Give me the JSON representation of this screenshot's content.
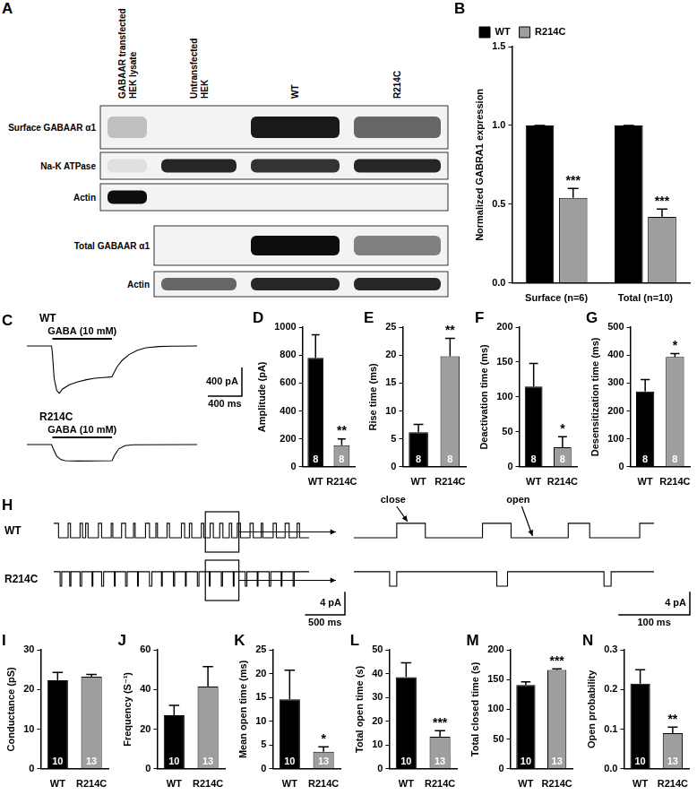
{
  "blot": {
    "panel": "A",
    "lanes": [
      [
        "GABAAR transfected",
        "HEK lysate"
      ],
      [
        "Untransfected",
        "HEK"
      ],
      [
        "WT"
      ],
      [
        "R214C"
      ]
    ],
    "rows": [
      {
        "label": "Surface GABAAR α1",
        "band_intensity": [
          0.25,
          0,
          0.9,
          0.6
        ]
      },
      {
        "label": "Na-K ATPase",
        "band_intensity": [
          0.12,
          0.85,
          0.8,
          0.85
        ]
      },
      {
        "label": "Actin",
        "band_intensity": [
          0.95,
          0,
          0,
          0
        ]
      },
      {
        "label": "Total GABAAR α1",
        "band_intensity": [
          null,
          0,
          0.95,
          0.5
        ]
      },
      {
        "label": "Actin",
        "band_intensity": [
          null,
          0.6,
          0.85,
          0.85
        ]
      }
    ]
  },
  "chart_data": [
    {
      "panel": "B",
      "type": "bar",
      "categories": [
        "Surface (n=6)",
        "Total (n=10)"
      ],
      "series": [
        {
          "name": "WT",
          "color": "#000000",
          "values": [
            1,
            1
          ],
          "errors": [
            0,
            0
          ]
        },
        {
          "name": "R214C",
          "color": "#9e9e9e",
          "values": [
            0.54,
            0.42
          ],
          "errors": [
            0.06,
            0.05
          ],
          "significance": [
            "***",
            "***"
          ]
        }
      ],
      "y_label": "Normalized GABRA1 expression",
      "ylim": [
        0,
        1.5
      ],
      "yticks": [
        {
          "value": 0,
          "label": "0.0"
        },
        0.5,
        {
          "value": 1,
          "label": "1.0"
        },
        1.5
      ],
      "legend": "top-left",
      "grid": false
    },
    {
      "panel": "C",
      "type": "line",
      "line_style": "solid",
      "color": "#000000",
      "series": [
        {
          "name": "WT",
          "x": [
            0,
            290,
            300,
            320,
            350,
            380,
            420,
            500,
            600,
            700,
            800,
            900,
            1000,
            1020,
            1060,
            1120,
            1200,
            1300,
            1400,
            1550,
            1700,
            2000
          ],
          "values": [
            0,
            0,
            -100,
            -450,
            -620,
            -660,
            -600,
            -540,
            -500,
            -470,
            -450,
            -440,
            -430,
            -380,
            -290,
            -200,
            -120,
            -60,
            -25,
            -8,
            -3,
            0
          ]
        },
        {
          "name": "R214C",
          "x": [
            0,
            290,
            310,
            350,
            400,
            450,
            600,
            800,
            1000,
            1030,
            1080,
            1150,
            1250,
            2000
          ],
          "values": [
            0,
            0,
            -60,
            -160,
            -210,
            -225,
            -230,
            -228,
            -225,
            -150,
            -60,
            -15,
            -3,
            0
          ]
        }
      ],
      "stimulus": {
        "label": "GABA (10 mM)",
        "start": 300,
        "end": 1000
      },
      "xlim": [
        0,
        2000
      ],
      "ylim": [
        -700,
        50
      ],
      "scale_bar": {
        "x": 400,
        "x_label": "400 ms",
        "y": 400,
        "y_label": "400 pA"
      },
      "tick_labels": false
    },
    {
      "panel": "D",
      "type": "bar",
      "categories": [
        "WT",
        "R214C"
      ],
      "values": [
        780,
        155
      ],
      "errors": [
        165,
        45
      ],
      "colors": [
        "#000000",
        "#9e9e9e"
      ],
      "n": [
        8,
        8
      ],
      "significance": [
        null,
        "**"
      ],
      "y_label": "Amplitude (pA)",
      "ylim": [
        0,
        1000
      ],
      "yticks": [
        0,
        200,
        400,
        600,
        800,
        1000
      ],
      "grid": false
    },
    {
      "panel": "E",
      "type": "bar",
      "categories": [
        "WT",
        "R214C"
      ],
      "values": [
        6.2,
        19.8
      ],
      "errors": [
        1.4,
        3.2
      ],
      "colors": [
        "#000000",
        "#9e9e9e"
      ],
      "n": [
        8,
        8
      ],
      "significance": [
        null,
        "**"
      ],
      "y_label": "Rise time (ms)",
      "ylim": [
        0,
        25
      ],
      "yticks": [
        0,
        5,
        10,
        15,
        20,
        25
      ],
      "grid": false
    },
    {
      "panel": "F",
      "type": "bar",
      "categories": [
        "WT",
        "R214C"
      ],
      "values": [
        115,
        28
      ],
      "errors": [
        33,
        15
      ],
      "colors": [
        "#000000",
        "#9e9e9e"
      ],
      "n": [
        8,
        8
      ],
      "significance": [
        null,
        "*"
      ],
      "y_label": "Deactivation time (ms)",
      "ylim": [
        0,
        200
      ],
      "yticks": [
        0,
        50,
        100,
        150,
        200
      ],
      "grid": false
    },
    {
      "panel": "G",
      "type": "bar",
      "categories": [
        "WT",
        "R214C"
      ],
      "values": [
        270,
        393
      ],
      "errors": [
        42,
        12
      ],
      "colors": [
        "#000000",
        "#9e9e9e"
      ],
      "n": [
        8,
        8
      ],
      "significance": [
        null,
        "*"
      ],
      "y_label": "Desensitization time (ms)",
      "ylim": [
        0,
        500
      ],
      "yticks": [
        0,
        100,
        200,
        300,
        400,
        500
      ],
      "grid": false
    },
    {
      "panel": "H",
      "type": "line",
      "line_style": "steps",
      "color": "#000000",
      "series": [
        {
          "name": "WT",
          "x": [
            0,
            60,
            180,
            210,
            330,
            360,
            400,
            430,
            560,
            600,
            720,
            740,
            850,
            900,
            1000,
            1020,
            1150,
            1200,
            1280,
            1300,
            1420,
            1450,
            1600,
            1640,
            1700,
            1730,
            1850,
            1880,
            1960,
            2000,
            2080,
            2120,
            2200,
            2230,
            2300,
            2340,
            2460,
            2500,
            2600,
            2620,
            2750,
            2790,
            2900,
            2950,
            3050,
            3080,
            3200
          ],
          "values": [
            0,
            -2.5,
            0,
            -2.5,
            0,
            -2.5,
            0,
            -2.5,
            0,
            -2.5,
            0,
            -2.5,
            0,
            -2.5,
            0,
            -2.5,
            0,
            -2.5,
            0,
            -2.5,
            0,
            -2.5,
            0,
            -2.5,
            0,
            -2.5,
            0,
            -2.5,
            0,
            -2.5,
            0,
            -2.5,
            0,
            -2.5,
            0,
            -2.5,
            0,
            -2.5,
            0,
            -2.5,
            0,
            -2.5,
            0,
            -2.5,
            0,
            -2.5,
            -2.5
          ],
          "annotations": [
            {
              "text": "close",
              "x": 1975,
              "y": 0
            },
            {
              "text": "open",
              "x": 2150,
              "y": -2.5
            }
          ]
        },
        {
          "name": "R214C",
          "x": [
            0,
            80,
            100,
            200,
            215,
            330,
            350,
            480,
            490,
            600,
            625,
            760,
            770,
            900,
            920,
            1050,
            1060,
            1200,
            1230,
            1350,
            1360,
            1500,
            1515,
            1650,
            1660,
            1800,
            1820,
            1950,
            1960,
            2100,
            2115,
            2250,
            2260,
            2400,
            2420,
            2550,
            2560,
            2700,
            2720,
            2850,
            2860,
            3000,
            3015,
            3200
          ],
          "values": [
            0,
            -2.5,
            0,
            -2.5,
            0,
            -2.5,
            0,
            -2.5,
            0,
            -2.5,
            0,
            -2.5,
            0,
            -2.5,
            0,
            -2.5,
            0,
            -2.5,
            0,
            -2.5,
            0,
            -2.5,
            0,
            -2.5,
            0,
            -2.5,
            0,
            -2.5,
            0,
            -2.5,
            0,
            -2.5,
            0,
            -2.5,
            0,
            -2.5,
            0,
            -2.5,
            0,
            -2.5,
            0,
            -2.5,
            0,
            0
          ]
        }
      ],
      "xlim": [
        0,
        3200
      ],
      "ylim": [
        -5,
        2
      ],
      "zoom_xlim": [
        1900,
        2320
      ],
      "scale_bar": {
        "x": 500,
        "x_label": "500 ms",
        "y": 4,
        "y_label": "4 pA"
      },
      "zoom_scale_bar": {
        "x": 100,
        "x_label": "100 ms",
        "y": 4,
        "y_label": "4 pA"
      },
      "tick_labels": false
    },
    {
      "panel": "I",
      "type": "bar",
      "categories": [
        "WT",
        "R214C"
      ],
      "values": [
        22.3,
        23.2
      ],
      "errors": [
        2,
        0.6
      ],
      "colors": [
        "#000000",
        "#9e9e9e"
      ],
      "n": [
        10,
        13
      ],
      "significance": [
        null,
        null
      ],
      "y_label": "Conductance (pS)",
      "ylim": [
        0,
        30
      ],
      "yticks": [
        0,
        10,
        20,
        30
      ],
      "grid": false
    },
    {
      "panel": "J",
      "type": "bar",
      "categories": [
        "WT",
        "R214C"
      ],
      "values": [
        27,
        41.5
      ],
      "errors": [
        5,
        10
      ],
      "colors": [
        "#000000",
        "#9e9e9e"
      ],
      "n": [
        10,
        13
      ],
      "significance": [
        null,
        null
      ],
      "y_label": "Frequency (S⁻¹)",
      "ylim": [
        0,
        60
      ],
      "yticks": [
        0,
        20,
        40,
        60
      ],
      "grid": false
    },
    {
      "panel": "K",
      "type": "bar",
      "categories": [
        "WT",
        "R214C"
      ],
      "values": [
        14.6,
        3.6
      ],
      "errors": [
        6.1,
        1
      ],
      "colors": [
        "#000000",
        "#9e9e9e"
      ],
      "n": [
        10,
        13
      ],
      "significance": [
        null,
        "*"
      ],
      "y_label": "Mean open time (ms)",
      "ylim": [
        0,
        25
      ],
      "yticks": [
        0,
        5,
        10,
        15,
        20,
        25
      ],
      "grid": false
    },
    {
      "panel": "L",
      "type": "bar",
      "categories": [
        "WT",
        "R214C"
      ],
      "values": [
        38.5,
        13.5
      ],
      "errors": [
        6,
        2.5
      ],
      "colors": [
        "#000000",
        "#9e9e9e"
      ],
      "n": [
        10,
        13
      ],
      "significance": [
        null,
        "***"
      ],
      "y_label": "Total open time (s)",
      "ylim": [
        0,
        50
      ],
      "yticks": [
        0,
        10,
        20,
        30,
        40,
        50
      ],
      "grid": false
    },
    {
      "panel": "M",
      "type": "bar",
      "categories": [
        "WT",
        "R214C"
      ],
      "values": [
        141,
        166
      ],
      "errors": [
        5,
        2
      ],
      "colors": [
        "#000000",
        "#9e9e9e"
      ],
      "n": [
        10,
        13
      ],
      "significance": [
        null,
        "***"
      ],
      "y_label": "Total closed time (s)",
      "ylim": [
        0,
        200
      ],
      "yticks": [
        0,
        50,
        100,
        150,
        200
      ],
      "grid": false
    },
    {
      "panel": "N",
      "type": "bar",
      "categories": [
        "WT",
        "R214C"
      ],
      "values": [
        0.215,
        0.09
      ],
      "errors": [
        0.035,
        0.015
      ],
      "colors": [
        "#000000",
        "#9e9e9e"
      ],
      "n": [
        10,
        13
      ],
      "significance": [
        null,
        "**"
      ],
      "y_label": "Open probability",
      "ylim": [
        0,
        0.3
      ],
      "yticks": [
        {
          "value": 0,
          "label": "0.0"
        },
        0.1,
        0.2,
        0.3
      ],
      "grid": false
    }
  ]
}
